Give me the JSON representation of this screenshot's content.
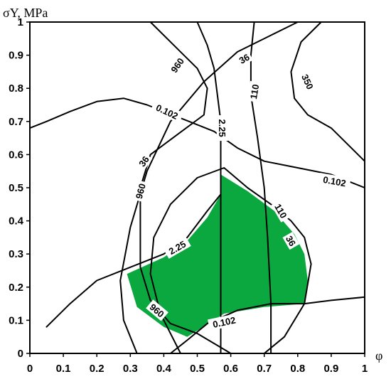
{
  "chart_data": {
    "type": "contour",
    "xlabel": "φ",
    "ylabel": "σY, MPa",
    "xlim": [
      0,
      1
    ],
    "ylim": [
      0,
      1
    ],
    "x_ticks": [
      "0",
      "0.1",
      "0.2",
      "0.3",
      "0.4",
      "0.5",
      "0.6",
      "0.7",
      "0.8",
      "0.9",
      "1"
    ],
    "y_ticks": [
      "0",
      "0.1",
      "0.2",
      "0.3",
      "0.4",
      "0.5",
      "0.6",
      "0.7",
      "0.8",
      "0.9",
      "1"
    ],
    "feasible_region_color": "#0aa83f",
    "feasible_region": [
      [
        0.57,
        0.54
      ],
      [
        0.65,
        0.49
      ],
      [
        0.73,
        0.43
      ],
      [
        0.79,
        0.36
      ],
      [
        0.82,
        0.3
      ],
      [
        0.83,
        0.22
      ],
      [
        0.82,
        0.15
      ],
      [
        0.7,
        0.14
      ],
      [
        0.58,
        0.12
      ],
      [
        0.47,
        0.05
      ],
      [
        0.4,
        0.08
      ],
      [
        0.32,
        0.14
      ],
      [
        0.29,
        0.24
      ],
      [
        0.4,
        0.29
      ],
      [
        0.47,
        0.34
      ],
      [
        0.53,
        0.41
      ],
      [
        0.57,
        0.48
      ]
    ],
    "contours": [
      {
        "label": "0.102",
        "segments": [
          [
            [
              0.0,
              0.68
            ],
            [
              0.05,
              0.7
            ],
            [
              0.12,
              0.73
            ],
            [
              0.2,
              0.76
            ],
            [
              0.28,
              0.77
            ],
            [
              0.35,
              0.75
            ],
            [
              0.45,
              0.71
            ],
            [
              0.55,
              0.67
            ],
            [
              0.62,
              0.62
            ],
            [
              0.7,
              0.58
            ],
            [
              0.8,
              0.56
            ],
            [
              0.9,
              0.54
            ],
            [
              1.0,
              0.5
            ]
          ],
          [
            [
              0.42,
              0.0
            ],
            [
              0.47,
              0.04
            ],
            [
              0.53,
              0.09
            ],
            [
              0.62,
              0.13
            ],
            [
              0.72,
              0.15
            ],
            [
              0.82,
              0.15
            ],
            [
              0.9,
              0.16
            ],
            [
              1.0,
              0.17
            ]
          ]
        ],
        "labels": [
          {
            "x": 0.41,
            "y": 0.73,
            "angle": 25
          },
          {
            "x": 0.91,
            "y": 0.52,
            "angle": 10
          },
          {
            "x": 0.58,
            "y": 0.095,
            "angle": -12
          }
        ]
      },
      {
        "label": "2.25",
        "segments": [
          [
            [
              0.57,
              0.0
            ],
            [
              0.57,
              0.29
            ],
            [
              0.57,
              0.56
            ],
            [
              0.57,
              0.64
            ],
            [
              0.57,
              0.7
            ],
            [
              0.56,
              0.78
            ],
            [
              0.55,
              0.86
            ],
            [
              0.53,
              0.93
            ],
            [
              0.5,
              1.0
            ]
          ],
          [
            [
              0.05,
              0.08
            ],
            [
              0.12,
              0.15
            ],
            [
              0.2,
              0.22
            ],
            [
              0.3,
              0.26
            ],
            [
              0.4,
              0.3
            ],
            [
              0.47,
              0.35
            ],
            [
              0.53,
              0.43
            ],
            [
              0.57,
              0.48
            ]
          ]
        ],
        "labels": [
          {
            "x": 0.575,
            "y": 0.68,
            "angle": 90
          },
          {
            "x": 0.44,
            "y": 0.32,
            "angle": -30
          }
        ]
      },
      {
        "label": "36",
        "segments": [
          [
            [
              0.45,
              0.0
            ],
            [
              0.39,
              0.12
            ],
            [
              0.36,
              0.24
            ],
            [
              0.37,
              0.35
            ],
            [
              0.42,
              0.45
            ],
            [
              0.5,
              0.53
            ],
            [
              0.58,
              0.56
            ],
            [
              0.65,
              0.5
            ],
            [
              0.72,
              0.45
            ],
            [
              0.78,
              0.4
            ],
            [
              0.82,
              0.35
            ],
            [
              0.84,
              0.27
            ],
            [
              0.82,
              0.15
            ],
            [
              0.76,
              0.05
            ],
            [
              0.7,
              0.0
            ]
          ],
          [
            [
              0.32,
              0.0
            ],
            [
              0.28,
              0.1
            ],
            [
              0.27,
              0.22
            ],
            [
              0.3,
              0.38
            ],
            [
              0.35,
              0.55
            ],
            [
              0.42,
              0.7
            ],
            [
              0.52,
              0.82
            ],
            [
              0.62,
              0.91
            ],
            [
              0.72,
              0.96
            ],
            [
              0.8,
              1.0
            ]
          ]
        ],
        "labels": [
          {
            "x": 0.78,
            "y": 0.34,
            "angle": 60
          },
          {
            "x": 0.34,
            "y": 0.58,
            "angle": -55
          },
          {
            "x": 0.64,
            "y": 0.89,
            "angle": -30
          }
        ]
      },
      {
        "label": "110",
        "segments": [
          [
            [
              0.72,
              0.0
            ],
            [
              0.72,
              0.15
            ],
            [
              0.71,
              0.35
            ],
            [
              0.7,
              0.5
            ],
            [
              0.68,
              0.65
            ],
            [
              0.66,
              0.78
            ],
            [
              0.66,
              0.9
            ],
            [
              0.67,
              1.0
            ]
          ]
        ],
        "labels": [
          {
            "x": 0.67,
            "y": 0.79,
            "angle": -80
          },
          {
            "x": 0.75,
            "y": 0.43,
            "angle": 60
          }
        ]
      },
      {
        "label": "350",
        "segments": [
          [
            [
              0.87,
              1.0
            ],
            [
              0.81,
              0.94
            ],
            [
              0.78,
              0.85
            ],
            [
              0.79,
              0.77
            ],
            [
              0.83,
              0.72
            ],
            [
              0.9,
              0.68
            ],
            [
              0.96,
              0.62
            ],
            [
              1.0,
              0.58
            ]
          ]
        ],
        "labels": [
          {
            "x": 0.83,
            "y": 0.82,
            "angle": 65
          }
        ]
      },
      {
        "label": "960",
        "segments": [
          [
            [
              0.36,
              1.0
            ],
            [
              0.43,
              0.93
            ],
            [
              0.5,
              0.86
            ],
            [
              0.53,
              0.8
            ],
            [
              0.52,
              0.72
            ],
            [
              0.44,
              0.66
            ],
            [
              0.36,
              0.6
            ],
            [
              0.33,
              0.5
            ],
            [
              0.33,
              0.38
            ],
            [
              0.33,
              0.26
            ],
            [
              0.36,
              0.16
            ],
            [
              0.42,
              0.09
            ],
            [
              0.5,
              0.06
            ],
            [
              0.55,
              0.03
            ],
            [
              0.6,
              0.0
            ]
          ]
        ],
        "labels": [
          {
            "x": 0.44,
            "y": 0.87,
            "angle": -55
          },
          {
            "x": 0.33,
            "y": 0.49,
            "angle": -75
          },
          {
            "x": 0.38,
            "y": 0.13,
            "angle": 40
          }
        ]
      }
    ]
  }
}
